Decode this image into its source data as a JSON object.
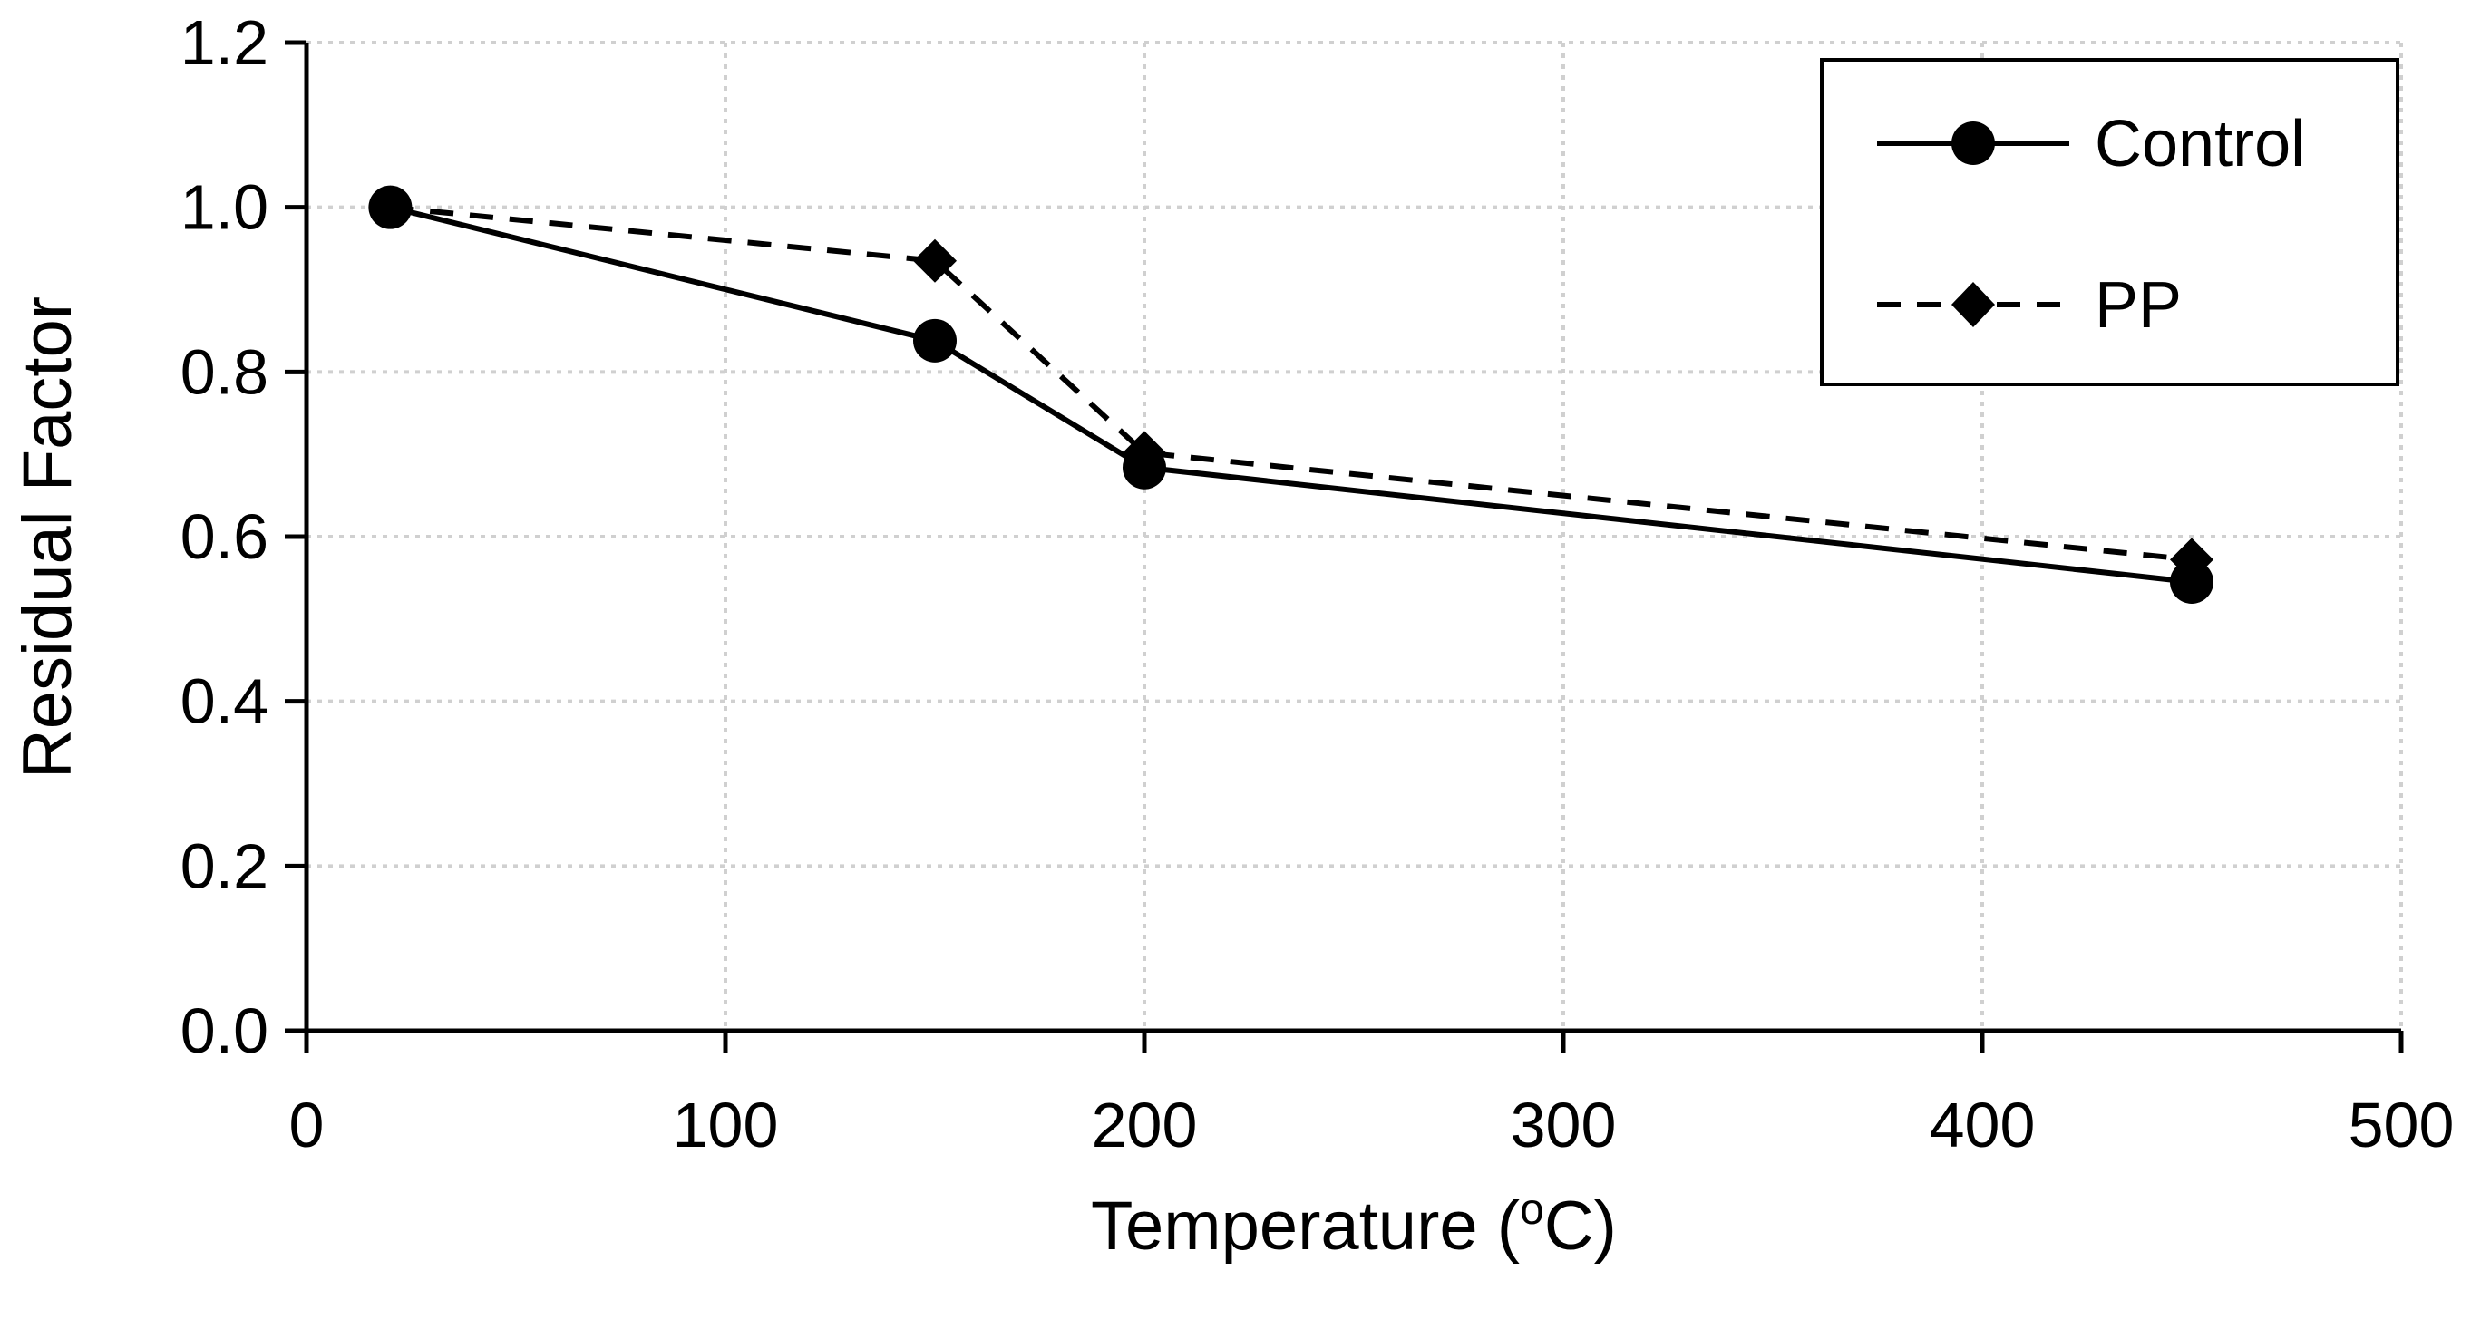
{
  "chart_data": {
    "type": "line",
    "title": "",
    "xlabel": "Temperature (",
    "xlabel_sup": "o",
    "xlabel_suffix": "C)",
    "ylabel": "Residual Factor",
    "xlim": [
      0,
      500
    ],
    "ylim": [
      0.0,
      1.2
    ],
    "xticks": [
      0,
      100,
      200,
      300,
      400,
      500
    ],
    "xtick_labels": [
      "0",
      "100",
      "200",
      "300",
      "400",
      "500"
    ],
    "yticks": [
      0.0,
      0.2,
      0.4,
      0.6,
      0.8,
      1.0,
      1.2
    ],
    "ytick_labels": [
      "0.0",
      "0.2",
      "0.4",
      "0.6",
      "0.8",
      "1.0",
      "1.2"
    ],
    "grid": true,
    "legend_position": "top-right",
    "series": [
      {
        "name": "Control",
        "line_style": "solid",
        "marker": "circle",
        "x": [
          20,
          150,
          200,
          450
        ],
        "y": [
          1.0,
          0.838,
          0.684,
          0.545
        ]
      },
      {
        "name": "PP",
        "line_style": "dashed",
        "marker": "diamond",
        "x": [
          20,
          150,
          200,
          450
        ],
        "y": [
          1.0,
          0.935,
          0.702,
          0.572
        ]
      }
    ],
    "colors": {
      "line": "#000000",
      "grid": "#d0d0d0",
      "axis": "#000000",
      "background": "#ffffff"
    }
  }
}
